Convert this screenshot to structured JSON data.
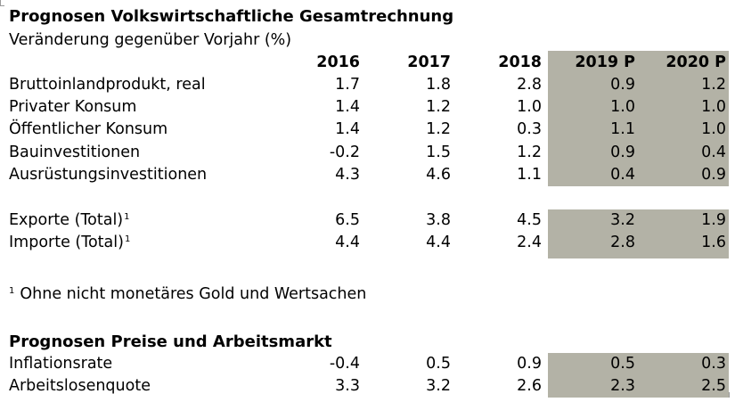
{
  "section1": {
    "title": "Prognosen Volkswirtschaftliche Gesamtrechnung",
    "subtitle": "Veränderung gegenüber Vorjahr (%)"
  },
  "columns": [
    "2016",
    "2017",
    "2018",
    "2019 P",
    "2020 P"
  ],
  "block1_rows": [
    {
      "label": "Bruttoinlandprodukt, real",
      "values": [
        "1.7",
        "1.8",
        "2.8",
        "0.9",
        "1.2"
      ]
    },
    {
      "label": "Privater Konsum",
      "values": [
        "1.4",
        "1.2",
        "1.0",
        "1.0",
        "1.0"
      ]
    },
    {
      "label": "Öffentlicher Konsum",
      "values": [
        "1.4",
        "1.2",
        "0.3",
        "1.1",
        "1.0"
      ]
    },
    {
      "label": "Bauinvestitionen",
      "values": [
        "-0.2",
        "1.5",
        "1.2",
        "0.9",
        "0.4"
      ]
    },
    {
      "label": "Ausrüstungsinvestitionen",
      "values": [
        "4.3",
        "4.6",
        "1.1",
        "0.4",
        "0.9"
      ]
    }
  ],
  "block2_rows": [
    {
      "label": "Exporte (Total)",
      "note": "1",
      "values": [
        "6.5",
        "3.8",
        "4.5",
        "3.2",
        "1.9"
      ]
    },
    {
      "label": "Importe (Total)",
      "note": "1",
      "values": [
        "4.4",
        "4.4",
        "2.4",
        "2.8",
        "1.6"
      ]
    }
  ],
  "footnote": {
    "mark": "1",
    "text": "Ohne nicht monetäres Gold und Wertsachen"
  },
  "section2": {
    "title": "Prognosen Preise und Arbeitsmarkt"
  },
  "block3_rows": [
    {
      "label": "Inflationsrate",
      "values": [
        "-0.4",
        "0.5",
        "0.9",
        "0.5",
        "0.3"
      ]
    },
    {
      "label": "Arbeitslosenquote",
      "values": [
        "3.3",
        "3.2",
        "2.6",
        "2.3",
        "2.5"
      ]
    }
  ],
  "colors": {
    "forecast_shading": "#b3b2a6",
    "text": "#000000",
    "background": "#ffffff"
  }
}
